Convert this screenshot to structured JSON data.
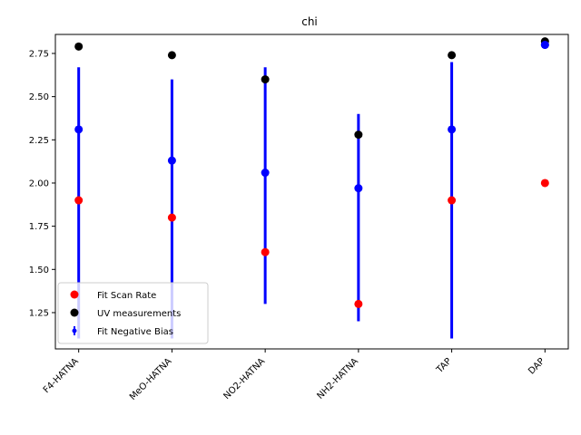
{
  "chart_data": {
    "type": "scatter",
    "title": "chi",
    "xlabel": "",
    "ylabel": "",
    "categories": [
      "F4-HATNA",
      "MeO-HATNA",
      "NO2-HATNA",
      "NH2-HATNA",
      "TAP",
      "DAP"
    ],
    "ylim": [
      1.04,
      2.86
    ],
    "yticks": [
      1.25,
      1.5,
      1.75,
      2.0,
      2.25,
      2.5,
      2.75
    ],
    "ytick_labels": [
      "1.25",
      "1.50",
      "1.75",
      "2.00",
      "2.25",
      "2.50",
      "2.75"
    ],
    "grid": false,
    "legend_position": "lower-left",
    "series": [
      {
        "name": "Fit Scan Rate",
        "color": "#ff0000",
        "values": [
          1.9,
          1.8,
          1.6,
          1.3,
          1.9,
          2.0
        ]
      },
      {
        "name": "UV measurements",
        "color": "#000000",
        "values": [
          2.79,
          2.74,
          2.6,
          2.28,
          2.74,
          2.82
        ]
      },
      {
        "name": "Fit Negative Bias",
        "color": "#0000ff",
        "values": [
          2.31,
          2.13,
          2.06,
          1.97,
          2.31,
          2.8
        ],
        "error_low": [
          1.1,
          1.1,
          1.3,
          1.2,
          1.1,
          null
        ],
        "error_high": [
          2.67,
          2.6,
          2.67,
          2.4,
          2.7,
          null
        ]
      }
    ]
  }
}
